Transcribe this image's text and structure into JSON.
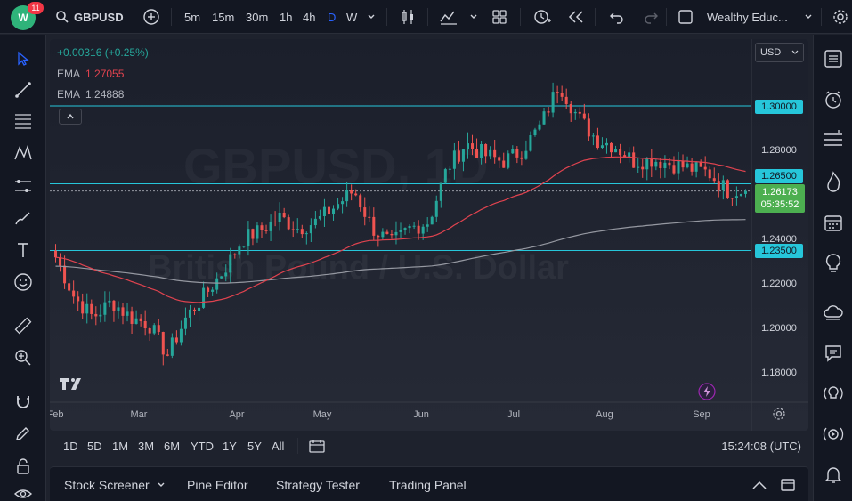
{
  "header": {
    "notification_count": "11",
    "symbol": "GBPUSD",
    "intervals": [
      "5m",
      "15m",
      "30m",
      "1h",
      "4h",
      "D",
      "W"
    ],
    "active_interval": "D",
    "layout_name": "Wealthy Educ..."
  },
  "legend": {
    "change": "+0.00316 (+0.25%)",
    "ema1_label": "EMA",
    "ema1_value": "1.27055",
    "ema2_label": "EMA",
    "ema2_value": "1.24888"
  },
  "price_scale": {
    "currency": "USD",
    "ticks": [
      "1.28000",
      "1.24000",
      "1.22000",
      "1.20000",
      "1.18000"
    ],
    "levels": [
      "1.30000",
      "1.26500",
      "1.23500"
    ],
    "last_price": "1.26173",
    "countdown": "05:35:52"
  },
  "time_axis": {
    "months": [
      "Feb",
      "Mar",
      "Apr",
      "May",
      "Jun",
      "Jul",
      "Aug",
      "Sep"
    ]
  },
  "watermark": {
    "line1": "GBPUSD, 1D",
    "line2": "British Pound / U.S. Dollar"
  },
  "ranges": [
    "1D",
    "5D",
    "1M",
    "3M",
    "6M",
    "YTD",
    "1Y",
    "5Y",
    "All"
  ],
  "clock": "15:24:08 (UTC)",
  "bottom_tabs": [
    "Stock Screener",
    "Pine Editor",
    "Strategy Tester",
    "Trading Panel"
  ],
  "colors": {
    "up": "#26a69a",
    "down": "#ef5350",
    "ema_fast": "#e0434f",
    "ema_slow": "#9598a1",
    "level_line": "#26c6da",
    "last_price_bg": "#4caf50",
    "accent": "#2962ff"
  },
  "chart_data": {
    "type": "candlestick",
    "symbol": "GBPUSD",
    "timeframe": "D",
    "period": [
      "Feb",
      "Sep"
    ],
    "y_range": [
      1.17,
      1.32
    ],
    "horizontal_levels": [
      1.3,
      1.265,
      1.235
    ],
    "last_price": 1.26173,
    "ema_fast_last": 1.27055,
    "ema_slow_last": 1.24888,
    "x_labels": [
      "Feb",
      "Mar",
      "Apr",
      "May",
      "Jun",
      "Jul",
      "Aug",
      "Sep"
    ],
    "close_path": [
      1.232,
      1.214,
      1.205,
      1.212,
      1.205,
      1.202,
      1.188,
      1.205,
      1.215,
      1.226,
      1.24,
      1.244,
      1.25,
      1.245,
      1.248,
      1.255,
      1.262,
      1.245,
      1.238,
      1.245,
      1.248,
      1.272,
      1.283,
      1.278,
      1.275,
      1.28,
      1.291,
      1.31,
      1.295,
      1.285,
      1.282,
      1.275,
      1.276,
      1.274,
      1.272,
      1.27,
      1.262,
      1.262
    ]
  }
}
